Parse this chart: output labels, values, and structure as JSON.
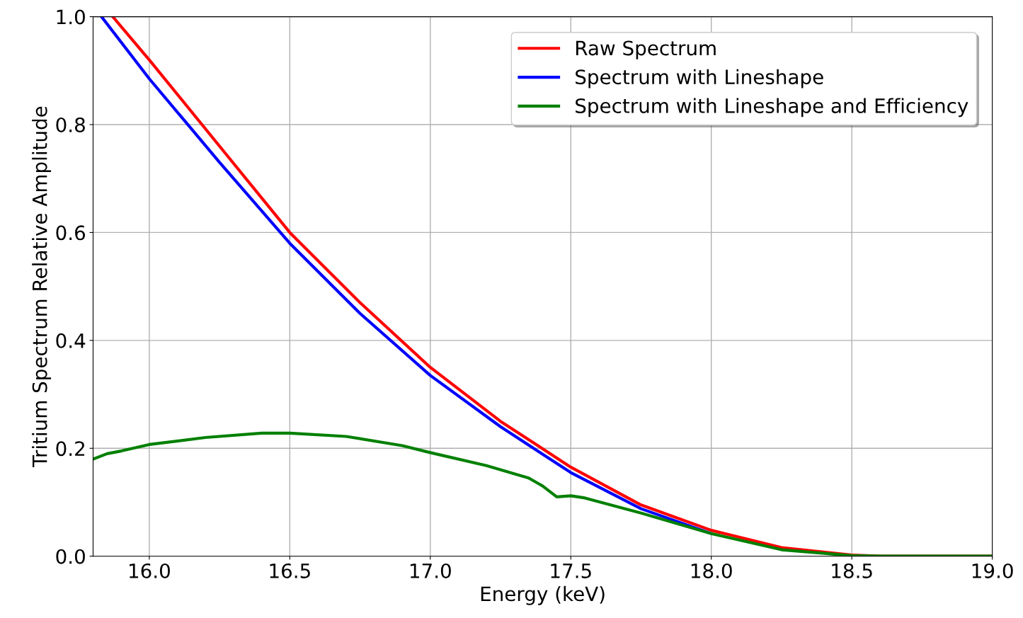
{
  "chart_data": {
    "type": "line",
    "xlabel": "Energy (keV)",
    "ylabel": "Tritium Spectrum Relative Amplitude",
    "xlim": [
      15.8,
      19.0
    ],
    "xticks": [
      {
        "value": 16.0,
        "label": "16.0"
      },
      {
        "value": 16.5,
        "label": "16.5"
      },
      {
        "value": 17.0,
        "label": "17.0"
      },
      {
        "value": 17.5,
        "label": "17.5"
      },
      {
        "value": 18.0,
        "label": "18.0"
      },
      {
        "value": 18.5,
        "label": "18.5"
      },
      {
        "value": 19.0,
        "label": "19.0"
      }
    ],
    "ylim": [
      0,
      1.0
    ],
    "yticks": [
      {
        "value": 0,
        "label": "0.0"
      },
      {
        "value": 0.2,
        "label": "0.2"
      },
      {
        "value": 0.4,
        "label": "0.4"
      },
      {
        "value": 0.6,
        "label": "0.6"
      },
      {
        "value": 0.8,
        "label": "0.8"
      },
      {
        "value": 1.0,
        "label": "1.0"
      }
    ],
    "grid": true,
    "legend": "top right",
    "marker": "none",
    "line_style": "solid",
    "series": [
      {
        "name": "Raw Spectrum",
        "color": "#ff0000",
        "x": [
          15.87,
          16.0,
          16.25,
          16.5,
          16.75,
          17.0,
          17.25,
          17.5,
          17.75,
          18.0,
          18.25,
          18.5,
          18.6,
          19.0
        ],
        "values": [
          1.0,
          0.92,
          0.76,
          0.6,
          0.47,
          0.35,
          0.25,
          0.165,
          0.095,
          0.048,
          0.016,
          0.002,
          0,
          0
        ]
      },
      {
        "name": "Spectrum with Lineshape",
        "color": "#0000ff",
        "x": [
          15.83,
          16.0,
          16.25,
          16.5,
          16.75,
          17.0,
          17.25,
          17.5,
          17.75,
          18.0
        ],
        "values": [
          1.0,
          0.885,
          0.73,
          0.58,
          0.45,
          0.335,
          0.24,
          0.155,
          0.088,
          0.042
        ]
      },
      {
        "name": "Spectrum with Lineshape and Efficiency",
        "color": "#008000",
        "x": [
          15.8,
          15.85,
          15.9,
          16.0,
          16.2,
          16.4,
          16.5,
          16.7,
          16.9,
          17.0,
          17.2,
          17.35,
          17.4,
          17.45,
          17.5,
          17.55,
          17.75,
          18.0,
          18.25,
          18.5,
          18.6,
          19.0
        ],
        "values": [
          0.18,
          0.19,
          0.195,
          0.207,
          0.22,
          0.228,
          0.228,
          0.222,
          0.205,
          0.192,
          0.168,
          0.145,
          0.13,
          0.11,
          0.112,
          0.108,
          0.08,
          0.042,
          0.012,
          0.001,
          0,
          0
        ]
      }
    ]
  }
}
